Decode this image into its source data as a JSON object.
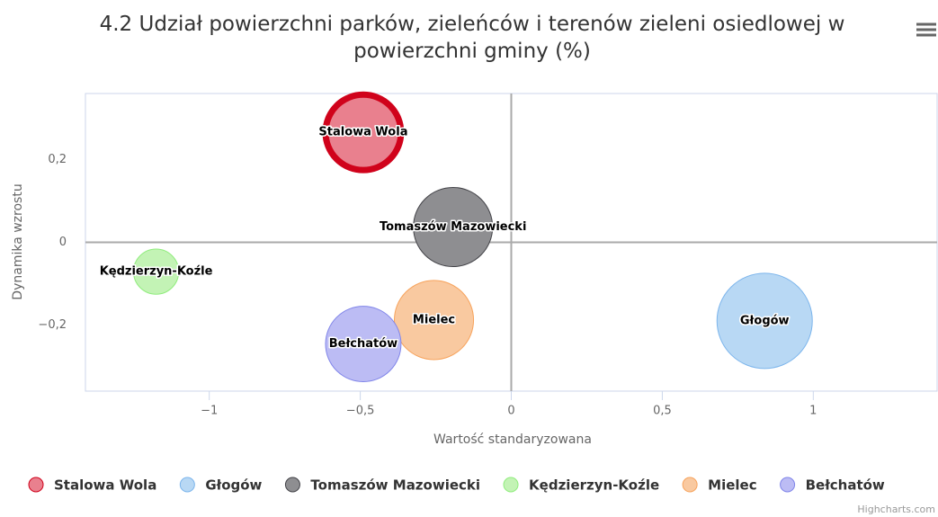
{
  "chart_data": {
    "type": "bubble",
    "title": "4.2 Udział powierzchni parków, zieleńców i terenów zieleni osiedlowej w powierzchni gminy (%)",
    "x_label": "Wartość standaryzowana",
    "y_label": "Dynamika wzrostu",
    "xlim": [
      -1.41,
      1.41
    ],
    "ylim": [
      -0.36,
      0.36
    ],
    "xticks": [
      {
        "value": -1,
        "label": "−1"
      },
      {
        "value": -0.5,
        "label": "−0,5"
      },
      0,
      {
        "value": 0.5,
        "label": "0,5"
      },
      1
    ],
    "yticks": [
      {
        "value": -0.2,
        "label": "−0,2"
      },
      0,
      {
        "value": 0.2,
        "label": "0,2"
      }
    ],
    "credits": "Highcharts.com",
    "series": [
      {
        "name": "Stalowa Wola",
        "color": "#e9808e",
        "line_color": "#d0021b",
        "line_width": 7,
        "x": [
          -0.49
        ],
        "values": [
          0.266
        ],
        "sizes": [
          17.6
        ]
      },
      {
        "name": "Głogów",
        "color": "#b8d8f4",
        "line_color": "#7cb5ec",
        "line_width": 1,
        "x": [
          0.839
        ],
        "values": [
          -0.19
        ],
        "sizes": [
          28.1
        ]
      },
      {
        "name": "Tomaszów Mazowiecki",
        "color": "#8e8e91",
        "line_color": "#434348",
        "line_width": 1,
        "x": [
          -0.193
        ],
        "values": [
          0.037
        ],
        "sizes": [
          19.4
        ]
      },
      {
        "name": "Kędzierzyn-Koźle",
        "color": "#c3f3b5",
        "line_color": "#90ed7d",
        "line_width": 1,
        "x": [
          -1.176
        ],
        "values": [
          -0.071
        ],
        "sizes": [
          6.3
        ]
      },
      {
        "name": "Mielec",
        "color": "#f9c9a0",
        "line_color": "#f7a35c",
        "line_width": 1,
        "x": [
          -0.256
        ],
        "values": [
          -0.188
        ],
        "sizes": [
          19.4
        ]
      },
      {
        "name": "Bełchatów",
        "color": "#bcbcf4",
        "line_color": "#8085e9",
        "line_width": 1,
        "x": [
          -0.49
        ],
        "values": [
          -0.246
        ],
        "sizes": [
          17.6
        ]
      }
    ]
  }
}
